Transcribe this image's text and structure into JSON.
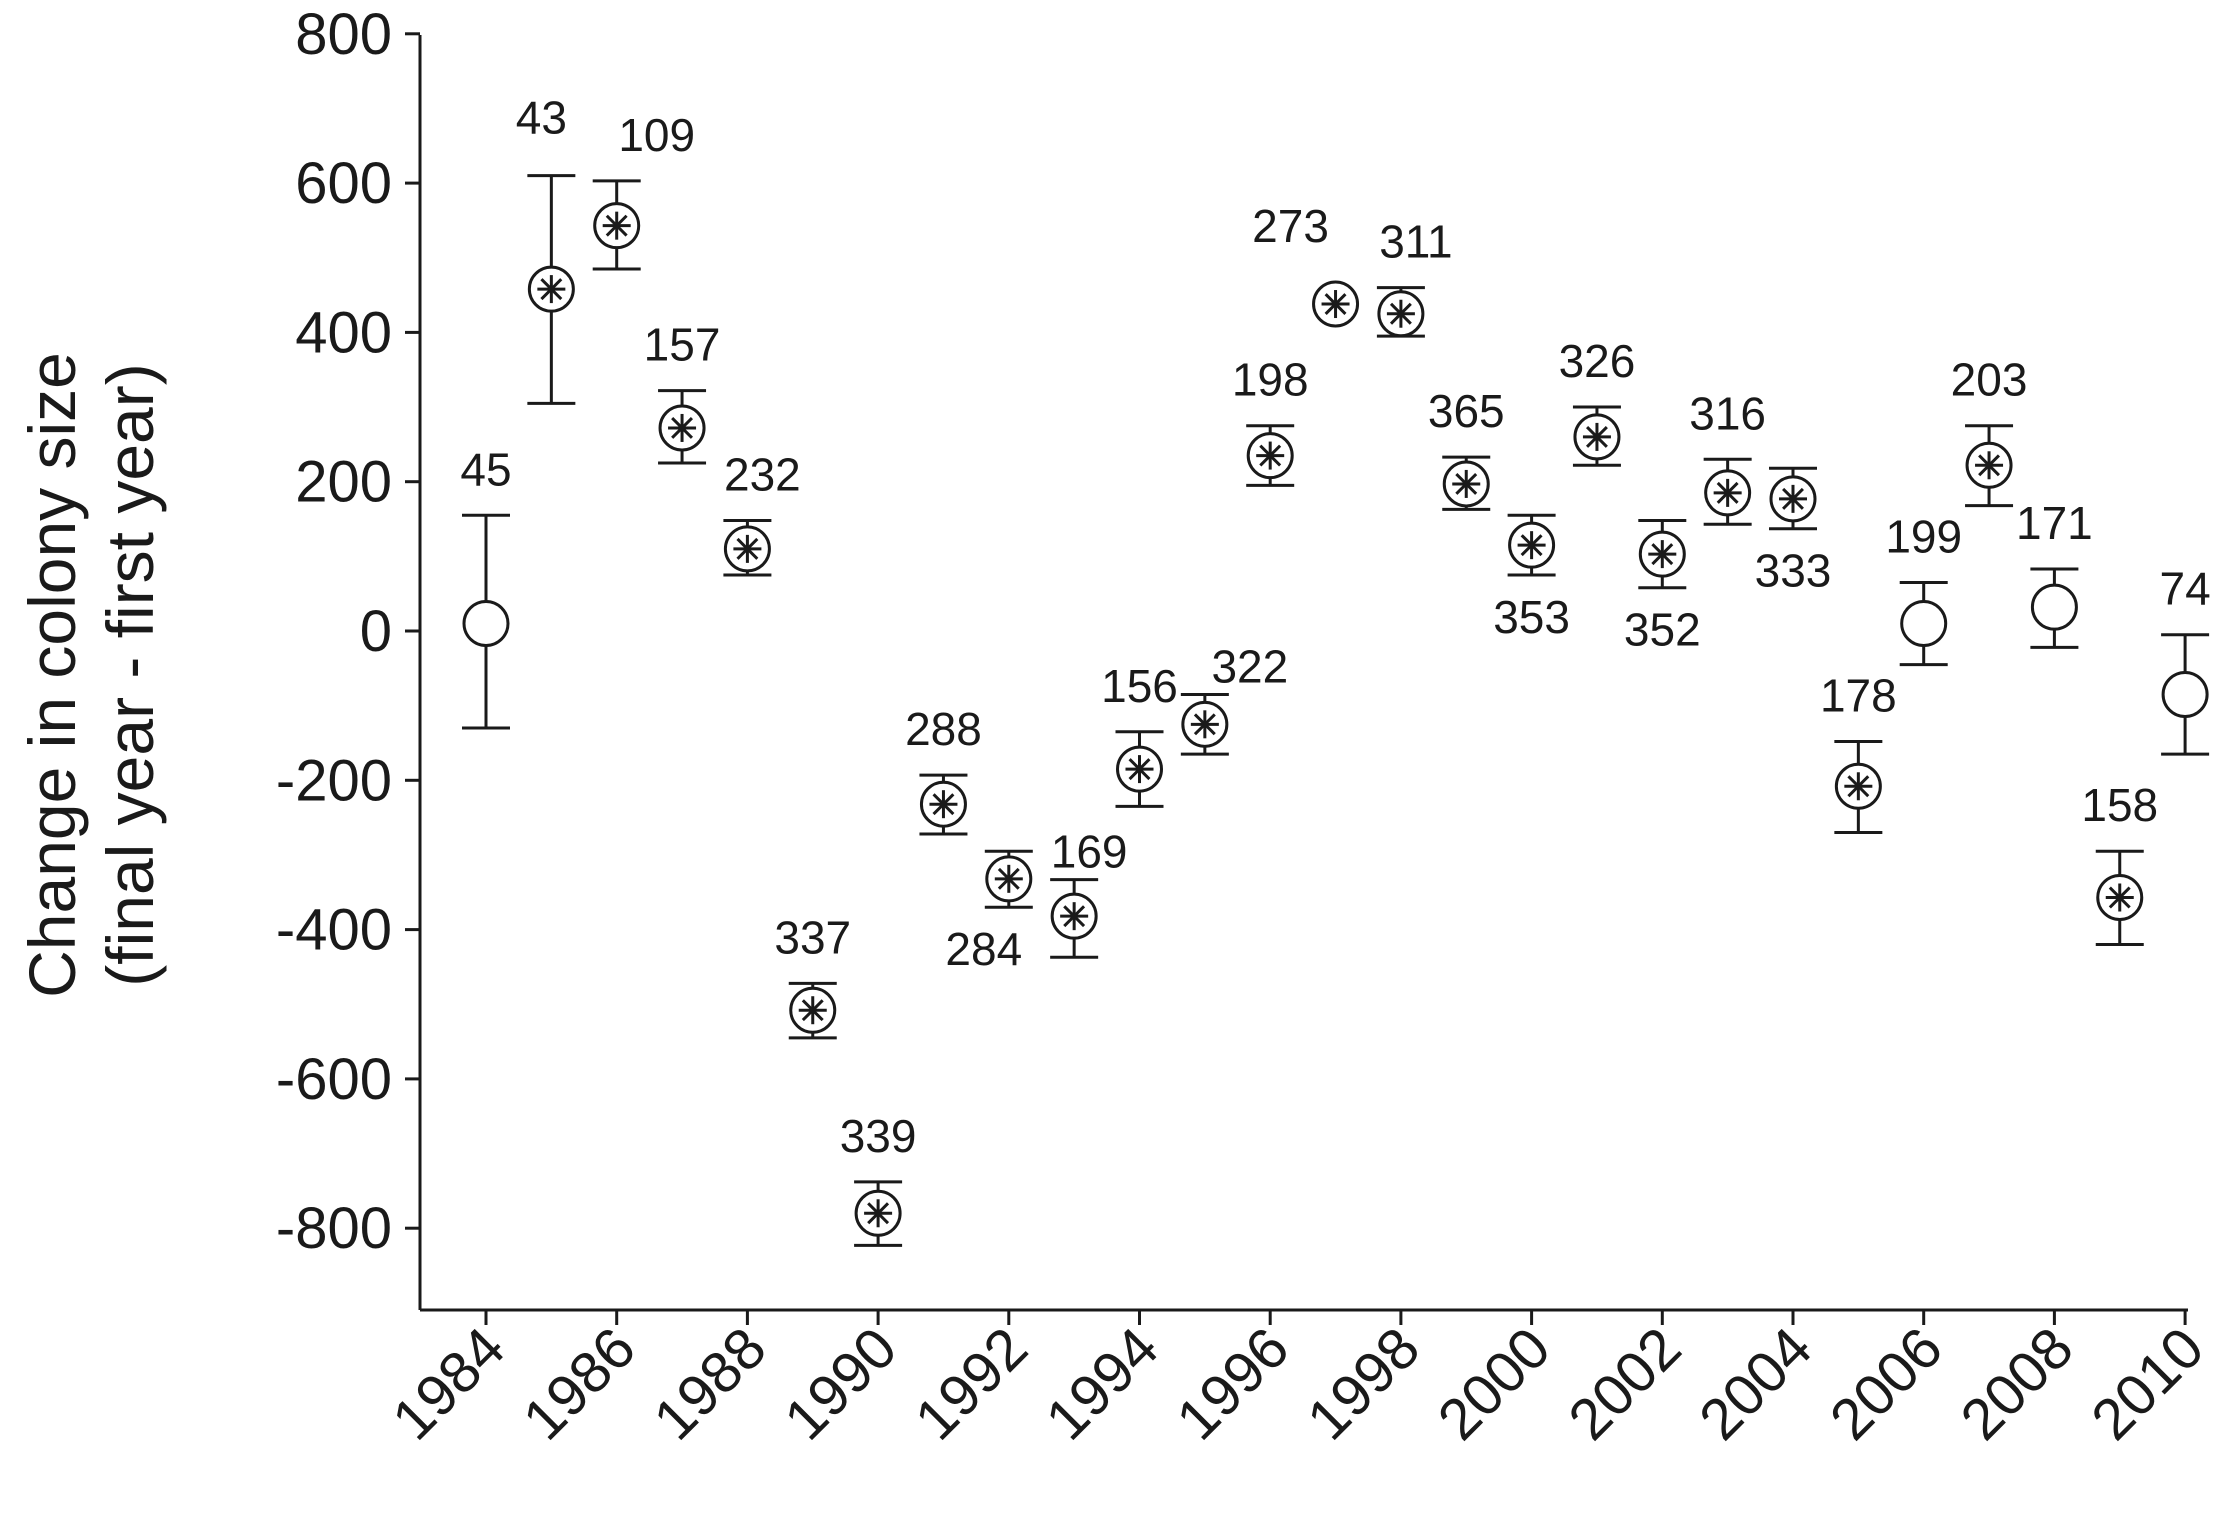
{
  "chart_data": {
    "type": "scatter",
    "title": "",
    "ylabel_lines": [
      "Change in colony size",
      "(final year - first year)"
    ],
    "xlabel": "",
    "xlim": [
      1983.5,
      2010.5
    ],
    "ylim": [
      -900,
      800
    ],
    "y_ticks": [
      800,
      600,
      400,
      200,
      0,
      -200,
      -400,
      -600,
      -800
    ],
    "x_ticks": [
      1984,
      1986,
      1988,
      1990,
      1992,
      1994,
      1996,
      1998,
      2000,
      2002,
      2004,
      2006,
      2008,
      2010
    ],
    "marker_legend": {
      "open_circle": "plain circle",
      "starred_circle": "circle with asterisk"
    },
    "points": [
      {
        "year": 1984,
        "y": 10,
        "err_low": -130,
        "err_high": 155,
        "n": "45",
        "label_pos": "above",
        "star": false
      },
      {
        "year": 1985,
        "y": 458,
        "err_low": 305,
        "err_high": 610,
        "n": "43",
        "label_pos": "above",
        "star": true
      },
      {
        "year": 1986,
        "y": 543,
        "err_low": 485,
        "err_high": 603,
        "n": "109",
        "label_pos": "above",
        "star": true
      },
      {
        "year": 1987,
        "y": 272,
        "err_low": 225,
        "err_high": 322,
        "n": "157",
        "label_pos": "above",
        "star": true
      },
      {
        "year": 1988,
        "y": 110,
        "err_low": 75,
        "err_high": 148,
        "n": "232",
        "label_pos": "above",
        "star": true
      },
      {
        "year": 1989,
        "y": -508,
        "err_low": -545,
        "err_high": -472,
        "n": "337",
        "label_pos": "above",
        "star": true
      },
      {
        "year": 1990,
        "y": -780,
        "err_low": -823,
        "err_high": -738,
        "n": "339",
        "label_pos": "above",
        "star": true
      },
      {
        "year": 1991,
        "y": -232,
        "err_low": -272,
        "err_high": -193,
        "n": "288",
        "label_pos": "above",
        "star": true
      },
      {
        "year": 1992,
        "y": -332,
        "err_low": -370,
        "err_high": -295,
        "n": "284",
        "label_pos": "below",
        "star": true
      },
      {
        "year": 1993,
        "y": -382,
        "err_low": -437,
        "err_high": -333,
        "n": "169",
        "label_pos": "above",
        "star": true
      },
      {
        "year": 1994,
        "y": -185,
        "err_low": -235,
        "err_high": -135,
        "n": "156",
        "label_pos": "above",
        "star": true
      },
      {
        "year": 1995,
        "y": -125,
        "err_low": -165,
        "err_high": -85,
        "n": "322",
        "label_pos": "above-right",
        "star": true
      },
      {
        "year": 1996,
        "y": 235,
        "err_low": 195,
        "err_high": 275,
        "n": "198",
        "label_pos": "above",
        "star": true
      },
      {
        "year": 1997,
        "y": 438,
        "err_low": 438,
        "err_high": 438,
        "n": "273",
        "label_pos": "above",
        "star": true
      },
      {
        "year": 1998,
        "y": 425,
        "err_low": 395,
        "err_high": 460,
        "n": "311",
        "label_pos": "above",
        "star": true
      },
      {
        "year": 1999,
        "y": 197,
        "err_low": 163,
        "err_high": 233,
        "n": "365",
        "label_pos": "above",
        "star": true
      },
      {
        "year": 2000,
        "y": 115,
        "err_low": 75,
        "err_high": 155,
        "n": "353",
        "label_pos": "below",
        "star": true
      },
      {
        "year": 2001,
        "y": 260,
        "err_low": 222,
        "err_high": 300,
        "n": "326",
        "label_pos": "above",
        "star": true
      },
      {
        "year": 2002,
        "y": 103,
        "err_low": 58,
        "err_high": 148,
        "n": "352",
        "label_pos": "below",
        "star": true
      },
      {
        "year": 2003,
        "y": 185,
        "err_low": 143,
        "err_high": 230,
        "n": "316",
        "label_pos": "above",
        "star": true
      },
      {
        "year": 2004,
        "y": 177,
        "err_low": 137,
        "err_high": 218,
        "n": "333",
        "label_pos": "below",
        "star": true
      },
      {
        "year": 2005,
        "y": -208,
        "err_low": -270,
        "err_high": -148,
        "n": "178",
        "label_pos": "above",
        "star": true
      },
      {
        "year": 2006,
        "y": 10,
        "err_low": -45,
        "err_high": 65,
        "n": "199",
        "label_pos": "above",
        "star": false
      },
      {
        "year": 2007,
        "y": 222,
        "err_low": 168,
        "err_high": 275,
        "n": "203",
        "label_pos": "above",
        "star": true
      },
      {
        "year": 2008,
        "y": 32,
        "err_low": -22,
        "err_high": 83,
        "n": "171",
        "label_pos": "above",
        "star": false
      },
      {
        "year": 2009,
        "y": -357,
        "err_low": -420,
        "err_high": -295,
        "n": "158",
        "label_pos": "above",
        "star": true
      },
      {
        "year": 2010,
        "y": -85,
        "err_low": -165,
        "err_high": -5,
        "n": "74",
        "label_pos": "above",
        "star": false
      }
    ]
  }
}
